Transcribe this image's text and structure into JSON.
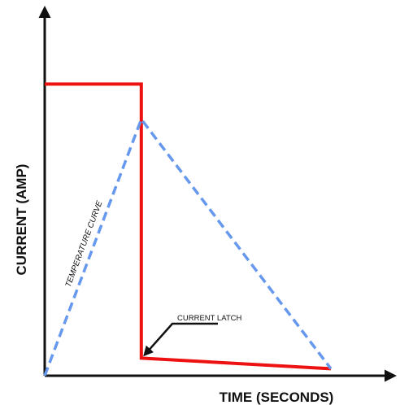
{
  "chart_data": {
    "type": "line",
    "xlabel": "TIME (SECONDS)",
    "ylabel": "CURRENT (AMP)",
    "xlim": [
      0,
      100
    ],
    "ylim": [
      0,
      100
    ],
    "grid": false,
    "series": [
      {
        "key": "current",
        "color": "#ee1111",
        "style": "solid",
        "points": [
          [
            0,
            83
          ],
          [
            27,
            83
          ],
          [
            27,
            5
          ],
          [
            80,
            2
          ]
        ]
      },
      {
        "key": "temperature",
        "name": "TEMPERATURE CURVE",
        "color": "#6699ee",
        "style": "dashed",
        "points": [
          [
            0,
            0
          ],
          [
            27,
            73
          ],
          [
            80,
            2
          ]
        ]
      }
    ],
    "annotations": [
      {
        "text": "CURRENT LATCH",
        "target": [
          27,
          5
        ]
      }
    ]
  },
  "colors": {
    "axis": "#111111"
  }
}
